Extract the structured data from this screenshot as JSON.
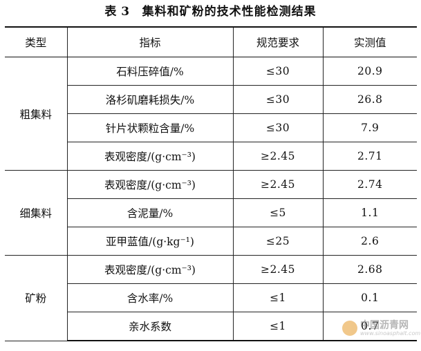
{
  "caption": {
    "number": "表 3",
    "title": "集料和矿粉的技术性能检测结果"
  },
  "headers": [
    "类型",
    "指标",
    "规范要求",
    "实测值"
  ],
  "groups": [
    {
      "type": "粗集料",
      "rows": [
        {
          "indicator": "石料压碎值/%",
          "requirement": "≤30",
          "measured": "20.9"
        },
        {
          "indicator": "洛杉矶磨耗损失/%",
          "requirement": "≤30",
          "measured": "26.8"
        },
        {
          "indicator": "针片状颗粒含量/%",
          "requirement": "≤30",
          "measured": "7.9"
        },
        {
          "indicator": "表观密度/(g·cm⁻³)",
          "requirement": "≥2.45",
          "measured": "2.71"
        }
      ]
    },
    {
      "type": "细集料",
      "rows": [
        {
          "indicator": "表观密度/(g·cm⁻³)",
          "requirement": "≥2.45",
          "measured": "2.74"
        },
        {
          "indicator": "含泥量/%",
          "requirement": "≤5",
          "measured": "1.1"
        },
        {
          "indicator": "亚甲蓝值/(g·kg⁻¹)",
          "requirement": "≤25",
          "measured": "2.6"
        }
      ]
    },
    {
      "type": "矿粉",
      "rows": [
        {
          "indicator": "表观密度/(g·cm⁻³)",
          "requirement": "≥2.45",
          "measured": "2.68"
        },
        {
          "indicator": "含水率/%",
          "requirement": "≤1",
          "measured": "0.1"
        },
        {
          "indicator": "亲水系数",
          "requirement": "≤1",
          "measured": "0.7"
        }
      ]
    }
  ],
  "watermark": {
    "text": "中国沥青网",
    "url": "www.sinoasphalt.com"
  }
}
